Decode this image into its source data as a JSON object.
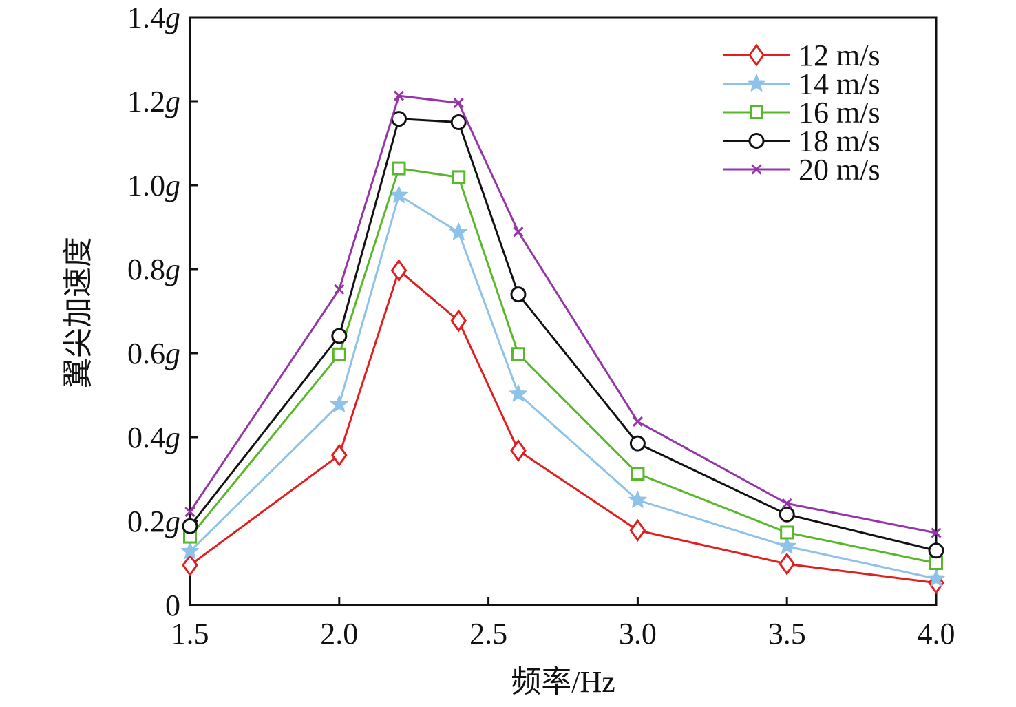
{
  "chart_data": {
    "type": "line",
    "title": "",
    "xlabel": "频率/Hz",
    "ylabel": "翼尖加速度",
    "xlim": [
      1.5,
      4.0
    ],
    "ylim": [
      0,
      1.4
    ],
    "x": [
      1.5,
      2.0,
      2.2,
      2.4,
      2.6,
      3.0,
      3.5,
      4.0
    ],
    "xticks": [
      {
        "value": 1.5,
        "label": "1.5"
      },
      {
        "value": 2.0,
        "label": "2.0"
      },
      {
        "value": 2.5,
        "label": "2.5"
      },
      {
        "value": 3.0,
        "label": "3.0"
      },
      {
        "value": 3.5,
        "label": "3.5"
      },
      {
        "value": 4.0,
        "label": "4.0"
      }
    ],
    "yticks": [
      {
        "value": 0,
        "num": "0",
        "unit": ""
      },
      {
        "value": 0.2,
        "num": "0.2",
        "unit": "g"
      },
      {
        "value": 0.4,
        "num": "0.4",
        "unit": "g"
      },
      {
        "value": 0.6,
        "num": "0.6",
        "unit": "g"
      },
      {
        "value": 0.8,
        "num": "0.8",
        "unit": "g"
      },
      {
        "value": 1.0,
        "num": "1.0",
        "unit": "g"
      },
      {
        "value": 1.2,
        "num": "1.2",
        "unit": "g"
      },
      {
        "value": 1.4,
        "num": "1.4",
        "unit": "g"
      }
    ],
    "legend_position": "top-right",
    "grid": false,
    "series": [
      {
        "name": "12 m/s",
        "color": "#e02020",
        "marker": "diamond",
        "values": [
          0.095,
          0.357,
          0.797,
          0.677,
          0.368,
          0.178,
          0.098,
          0.053
        ]
      },
      {
        "name": "14 m/s",
        "color": "#8ec2e8",
        "marker": "star",
        "values": [
          0.128,
          0.478,
          0.976,
          0.888,
          0.503,
          0.25,
          0.14,
          0.063
        ]
      },
      {
        "name": "16 m/s",
        "color": "#58b82a",
        "marker": "square",
        "values": [
          0.163,
          0.597,
          1.04,
          1.019,
          0.598,
          0.313,
          0.173,
          0.1
        ]
      },
      {
        "name": "18 m/s",
        "color": "#111111",
        "marker": "circle",
        "values": [
          0.188,
          0.641,
          1.158,
          1.15,
          0.74,
          0.385,
          0.216,
          0.13
        ]
      },
      {
        "name": "20 m/s",
        "color": "#9535a8",
        "marker": "x",
        "values": [
          0.222,
          0.752,
          1.213,
          1.196,
          0.889,
          0.437,
          0.242,
          0.172
        ]
      }
    ]
  }
}
